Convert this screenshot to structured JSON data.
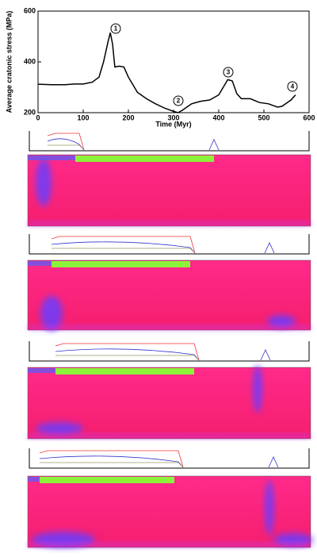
{
  "chart_data": {
    "type": "line",
    "x_label": "Time (Myr)",
    "y_label": "Average cratonic stress (MPa)",
    "x": [
      0,
      30,
      60,
      80,
      100,
      120,
      135,
      145,
      155,
      160,
      165,
      170,
      180,
      190,
      200,
      220,
      240,
      260,
      280,
      300,
      310,
      320,
      340,
      360,
      380,
      400,
      410,
      420,
      430,
      440,
      450,
      470,
      490,
      510,
      530,
      540,
      560,
      570
    ],
    "series": [
      {
        "name": "Average cratonic stress",
        "color": "#000000",
        "values": [
          312,
          310,
          310,
          313,
          313,
          320,
          340,
          400,
          480,
          515,
          470,
          380,
          383,
          380,
          340,
          280,
          255,
          235,
          218,
          205,
          200,
          210,
          235,
          245,
          250,
          270,
          300,
          330,
          325,
          275,
          255,
          255,
          240,
          235,
          222,
          225,
          250,
          270
        ]
      }
    ],
    "xlim": [
      0,
      600
    ],
    "ylim": [
      200,
      600
    ],
    "xticks": [
      0,
      100,
      200,
      300,
      400,
      500,
      600
    ],
    "yticks": [
      200,
      400,
      600
    ],
    "annotations": [
      "1",
      "2",
      "3",
      "4"
    ]
  }
}
